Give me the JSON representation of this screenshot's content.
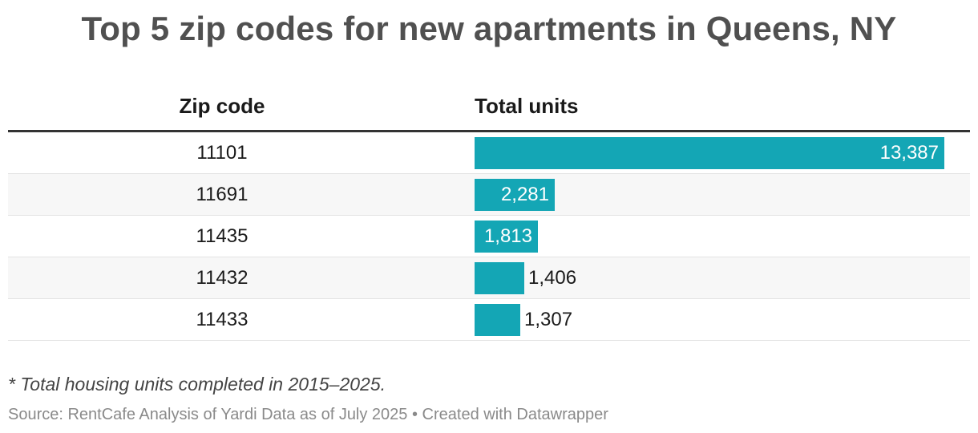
{
  "title": "Top 5 zip codes for new apartments in Queens, NY",
  "table": {
    "col_zip_header": "Zip code",
    "col_units_header": "Total units"
  },
  "chart_data": {
    "type": "bar",
    "orientation": "horizontal",
    "title": "Top 5 zip codes for new apartments in Queens, NY",
    "categories": [
      "11101",
      "11691",
      "11435",
      "11432",
      "11433"
    ],
    "values": [
      13387,
      2281,
      1813,
      1406,
      1307
    ],
    "value_labels": [
      "13,387",
      "2,281",
      "1,813",
      "1,406",
      "1,307"
    ],
    "xlim": [
      0,
      13387
    ],
    "bar_color": "#14a6b5",
    "grid": false
  },
  "footer": {
    "note": "* Total housing units completed in 2015–2025.",
    "source": "Source: RentCafe Analysis of Yardi Data as of July 2025 • Created with Datawrapper"
  }
}
